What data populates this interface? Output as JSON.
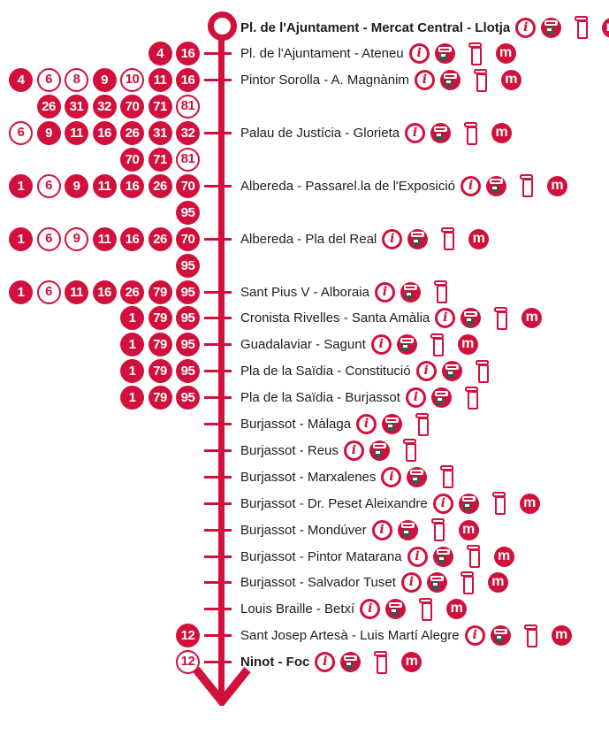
{
  "colors": {
    "red": "#d2103c",
    "text": "#1d1d1b",
    "machine_body": "#4d4d4d"
  },
  "icon_glyphs": {
    "info": "i",
    "metro": "m"
  },
  "route_diagram": {
    "direction": "down",
    "stops": [
      {
        "name": "Pl. de l'Ajuntament - Mercat Central - Llotja",
        "bold": true,
        "terminus": true,
        "badge_lines": [],
        "icons": [
          "info",
          "ticket-machine",
          "ticket-validator",
          "metro",
          "clock"
        ]
      },
      {
        "name": "Pl. de l'Ajuntament - Ateneu",
        "bold": false,
        "terminus": false,
        "badge_lines": [
          [
            {
              "n": "4",
              "filled": true
            },
            {
              "n": "16",
              "filled": true
            }
          ]
        ],
        "icons": [
          "info",
          "ticket-machine",
          "ticket-validator",
          "metro"
        ]
      },
      {
        "name": "Pintor Sorolla - A. Magnànim",
        "bold": false,
        "terminus": false,
        "badge_lines": [
          [
            {
              "n": "4",
              "filled": true
            },
            {
              "n": "6",
              "filled": false
            },
            {
              "n": "8",
              "filled": false
            },
            {
              "n": "9",
              "filled": true
            },
            {
              "n": "10",
              "filled": false
            },
            {
              "n": "11",
              "filled": true
            },
            {
              "n": "16",
              "filled": true
            }
          ],
          [
            {
              "n": "26",
              "filled": true
            },
            {
              "n": "31",
              "filled": true
            },
            {
              "n": "32",
              "filled": true
            },
            {
              "n": "70",
              "filled": true
            },
            {
              "n": "71",
              "filled": true
            },
            {
              "n": "81",
              "filled": false
            }
          ]
        ],
        "icons": [
          "info",
          "ticket-machine",
          "ticket-validator",
          "metro"
        ]
      },
      {
        "name": "Palau de Justícia - Glorieta",
        "bold": false,
        "terminus": false,
        "badge_lines": [
          [
            {
              "n": "6",
              "filled": false
            },
            {
              "n": "9",
              "filled": true
            },
            {
              "n": "11",
              "filled": true
            },
            {
              "n": "16",
              "filled": true
            },
            {
              "n": "26",
              "filled": true
            },
            {
              "n": "31",
              "filled": true
            },
            {
              "n": "32",
              "filled": true
            }
          ],
          [
            {
              "n": "70",
              "filled": true
            },
            {
              "n": "71",
              "filled": true
            },
            {
              "n": "81",
              "filled": false
            }
          ]
        ],
        "icons": [
          "info",
          "ticket-machine",
          "ticket-validator",
          "metro"
        ]
      },
      {
        "name": "Albereda - Passarel.la de l'Exposició",
        "bold": false,
        "terminus": false,
        "badge_lines": [
          [
            {
              "n": "1",
              "filled": true
            },
            {
              "n": "6",
              "filled": false
            },
            {
              "n": "9",
              "filled": true
            },
            {
              "n": "11",
              "filled": true
            },
            {
              "n": "16",
              "filled": true
            },
            {
              "n": "26",
              "filled": true
            },
            {
              "n": "70",
              "filled": true
            }
          ],
          [
            {
              "n": "95",
              "filled": true
            }
          ]
        ],
        "icons": [
          "info",
          "ticket-machine",
          "ticket-validator",
          "metro"
        ]
      },
      {
        "name": "Albereda - Pla del Real",
        "bold": false,
        "terminus": false,
        "badge_lines": [
          [
            {
              "n": "1",
              "filled": true
            },
            {
              "n": "6",
              "filled": false
            },
            {
              "n": "9",
              "filled": false
            },
            {
              "n": "11",
              "filled": true
            },
            {
              "n": "16",
              "filled": true
            },
            {
              "n": "26",
              "filled": true
            },
            {
              "n": "70",
              "filled": true
            }
          ],
          [
            {
              "n": "95",
              "filled": true
            }
          ]
        ],
        "icons": [
          "info",
          "ticket-machine",
          "ticket-validator",
          "metro"
        ]
      },
      {
        "name": "Sant Pius V - Alboraia",
        "bold": false,
        "terminus": false,
        "badge_lines": [
          [
            {
              "n": "1",
              "filled": true
            },
            {
              "n": "6",
              "filled": false
            },
            {
              "n": "11",
              "filled": true
            },
            {
              "n": "16",
              "filled": true
            },
            {
              "n": "26",
              "filled": true
            },
            {
              "n": "79",
              "filled": true
            },
            {
              "n": "95",
              "filled": true
            }
          ]
        ],
        "icons": [
          "info",
          "ticket-machine",
          "ticket-validator"
        ]
      },
      {
        "name": "Cronista Rivelles - Santa Amàlia",
        "bold": false,
        "terminus": false,
        "badge_lines": [
          [
            {
              "n": "1",
              "filled": true
            },
            {
              "n": "79",
              "filled": true
            },
            {
              "n": "95",
              "filled": true
            }
          ]
        ],
        "icons": [
          "info",
          "ticket-machine",
          "ticket-validator",
          "metro"
        ]
      },
      {
        "name": "Guadalaviar - Sagunt",
        "bold": false,
        "terminus": false,
        "badge_lines": [
          [
            {
              "n": "1",
              "filled": true
            },
            {
              "n": "79",
              "filled": true
            },
            {
              "n": "95",
              "filled": true
            }
          ]
        ],
        "icons": [
          "info",
          "ticket-machine",
          "ticket-validator",
          "metro"
        ]
      },
      {
        "name": "Pla de la Saïdia - Constitució",
        "bold": false,
        "terminus": false,
        "badge_lines": [
          [
            {
              "n": "1",
              "filled": true
            },
            {
              "n": "79",
              "filled": true
            },
            {
              "n": "95",
              "filled": true
            }
          ]
        ],
        "icons": [
          "info",
          "ticket-machine",
          "ticket-validator"
        ]
      },
      {
        "name": "Pla de la Saïdia - Burjassot",
        "bold": false,
        "terminus": false,
        "badge_lines": [
          [
            {
              "n": "1",
              "filled": true
            },
            {
              "n": "79",
              "filled": true
            },
            {
              "n": "95",
              "filled": true
            }
          ]
        ],
        "icons": [
          "info",
          "ticket-machine",
          "ticket-validator"
        ]
      },
      {
        "name": "Burjassot - Màlaga",
        "bold": false,
        "terminus": false,
        "badge_lines": [],
        "icons": [
          "info",
          "ticket-machine",
          "ticket-validator"
        ]
      },
      {
        "name": "Burjassot - Reus",
        "bold": false,
        "terminus": false,
        "badge_lines": [],
        "icons": [
          "info",
          "ticket-machine",
          "ticket-validator"
        ]
      },
      {
        "name": "Burjassot - Marxalenes",
        "bold": false,
        "terminus": false,
        "badge_lines": [],
        "icons": [
          "info",
          "ticket-machine",
          "ticket-validator"
        ]
      },
      {
        "name": "Burjassot - Dr. Peset Aleixandre",
        "bold": false,
        "terminus": false,
        "badge_lines": [],
        "icons": [
          "info",
          "ticket-machine",
          "ticket-validator",
          "metro"
        ]
      },
      {
        "name": "Burjassot - Mondúver",
        "bold": false,
        "terminus": false,
        "badge_lines": [],
        "icons": [
          "info",
          "ticket-machine",
          "ticket-validator",
          "metro"
        ]
      },
      {
        "name": "Burjassot - Pintor Matarana",
        "bold": false,
        "terminus": false,
        "badge_lines": [],
        "icons": [
          "info",
          "ticket-machine",
          "ticket-validator",
          "metro"
        ]
      },
      {
        "name": "Burjassot - Salvador Tuset",
        "bold": false,
        "terminus": false,
        "badge_lines": [],
        "icons": [
          "info",
          "ticket-machine",
          "ticket-validator",
          "metro"
        ]
      },
      {
        "name": "Louis Braille - Betxí",
        "bold": false,
        "terminus": false,
        "badge_lines": [],
        "icons": [
          "info",
          "ticket-machine",
          "ticket-validator",
          "metro"
        ]
      },
      {
        "name": "Sant Josep Artesà - Luis Martí Alegre",
        "bold": false,
        "terminus": false,
        "badge_lines": [
          [
            {
              "n": "12",
              "filled": true
            }
          ]
        ],
        "icons": [
          "info",
          "ticket-machine",
          "ticket-validator",
          "metro"
        ]
      },
      {
        "name": "Ninot - Foc",
        "bold": true,
        "terminus": false,
        "badge_lines": [
          [
            {
              "n": "12",
              "filled": false
            }
          ]
        ],
        "icons": [
          "info",
          "ticket-machine",
          "ticket-validator",
          "metro"
        ]
      }
    ]
  }
}
